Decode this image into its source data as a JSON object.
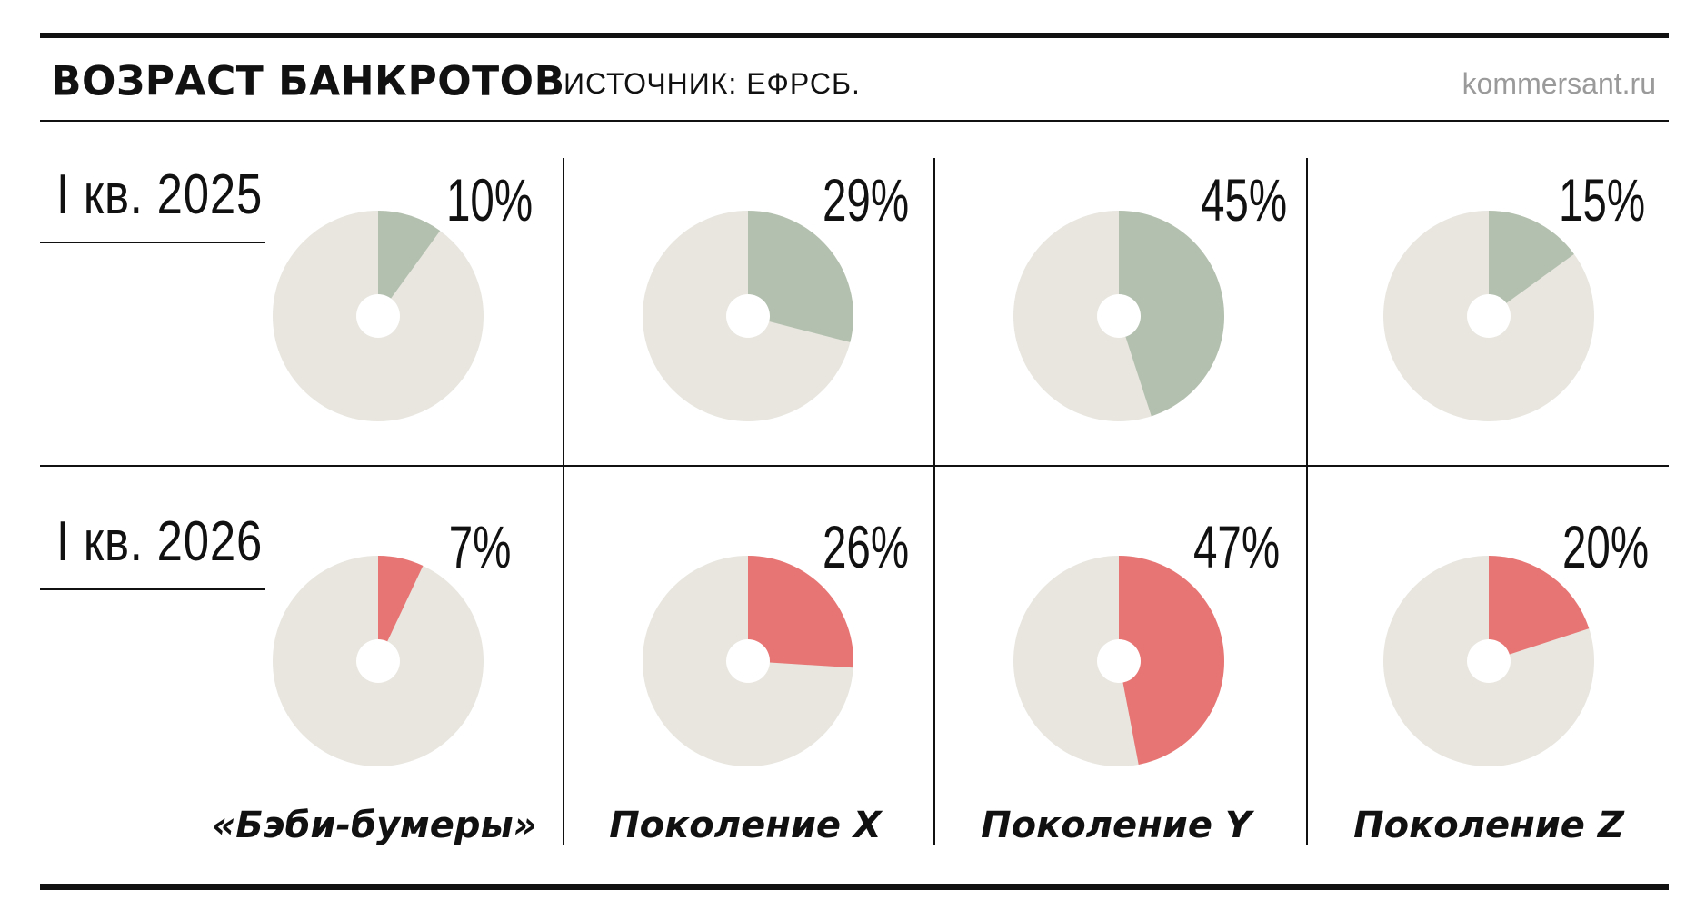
{
  "header": {
    "title": "ВОЗРАСТ БАНКРОТОВ",
    "source": "ИСТОЧНИК: ЕФРСБ.",
    "site": "kommersant.ru"
  },
  "colors": {
    "background_slice": "#e8e6df",
    "row1_accent": "#b3c0af",
    "row2_accent": "#e77574",
    "hole": "#ffffff"
  },
  "chart_data": {
    "type": "pie",
    "categories": [
      "«Бэби-бумеры»",
      "Поколение X",
      "Поколение Y",
      "Поколение Z"
    ],
    "series": [
      {
        "name": "I кв. 2025",
        "values": [
          10,
          29,
          45,
          15
        ],
        "labels": [
          "10%",
          "29%",
          "45%",
          "15%"
        ]
      },
      {
        "name": "I кв. 2026",
        "values": [
          7,
          26,
          47,
          20
        ],
        "labels": [
          "7%",
          "26%",
          "47%",
          "20%"
        ]
      }
    ],
    "unit": "%"
  }
}
